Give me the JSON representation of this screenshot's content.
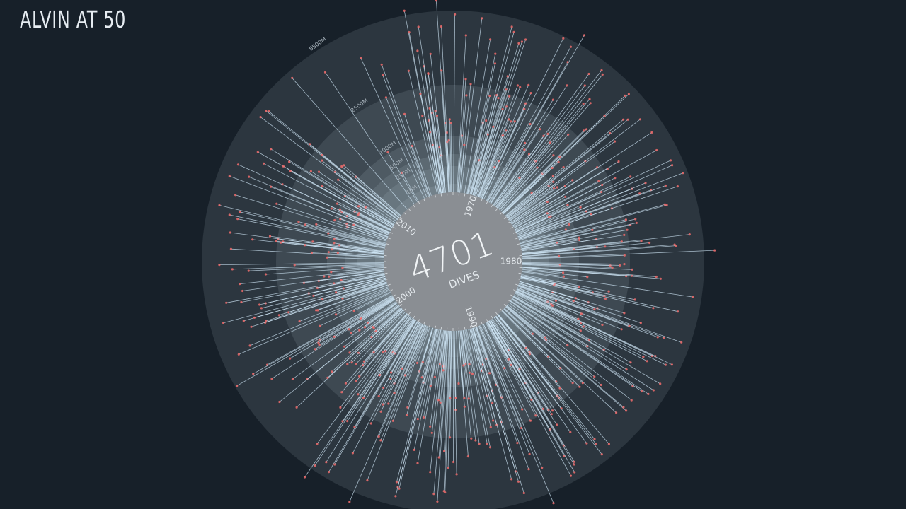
{
  "header": {
    "title": "ALVIN AT 50"
  },
  "colors": {
    "background": "#172029",
    "ring_fill": "#c9d3dc",
    "center_disc": "#8a8e93",
    "spike_line": "#cfe6f5",
    "spike_tip": "#ee6b6b"
  },
  "chart_data": {
    "type": "radial",
    "summary": {
      "value": "4701",
      "caption": "DIVES"
    },
    "depth_rings": [
      {
        "label": "6500M",
        "depth": 6500
      },
      {
        "label": "2500M",
        "depth": 2500
      },
      {
        "label": "1000M",
        "depth": 1000
      },
      {
        "label": "500M",
        "depth": 500
      },
      {
        "label": "250M",
        "depth": 250
      },
      {
        "label": "10M",
        "depth": 10
      }
    ],
    "year_ticks": [
      "1970",
      "1980",
      "1990",
      "2000",
      "2010"
    ],
    "dive_count": 4701,
    "max_depth": 6500,
    "scale": "log"
  }
}
